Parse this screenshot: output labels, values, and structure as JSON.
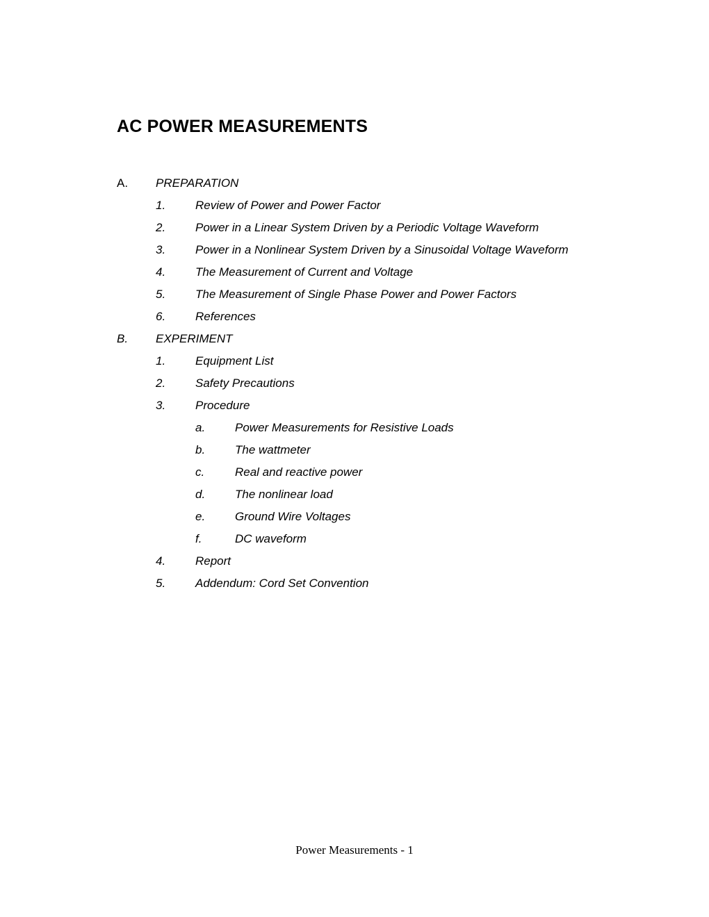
{
  "title": "AC POWER MEASUREMENTS",
  "sections": [
    {
      "marker": "A.",
      "markerItalic": false,
      "label": "PREPARATION",
      "items": [
        {
          "marker": "1.",
          "label": "Review of Power and Power Factor"
        },
        {
          "marker": "2.",
          "label": "Power in a Linear System Driven by a Periodic Voltage Waveform"
        },
        {
          "marker": "3.",
          "label": "Power in a Nonlinear System Driven by a Sinusoidal Voltage Waveform"
        },
        {
          "marker": "4.",
          "label": "The Measurement of Current and Voltage"
        },
        {
          "marker": "5.",
          "label": "The Measurement of Single Phase Power and Power Factors"
        },
        {
          "marker": "6.",
          "label": "References"
        }
      ]
    },
    {
      "marker": "B.",
      "markerItalic": true,
      "label": "EXPERIMENT",
      "items": [
        {
          "marker": "1.",
          "label": "Equipment List"
        },
        {
          "marker": "2.",
          "label": "Safety Precautions"
        },
        {
          "marker": "3.",
          "label": "Procedure",
          "subitems": [
            {
              "marker": "a.",
              "label": "Power Measurements for Resistive Loads"
            },
            {
              "marker": "b.",
              "label": "The wattmeter"
            },
            {
              "marker": "c.",
              "label": "Real and reactive power"
            },
            {
              "marker": "d.",
              "label": "The nonlinear load"
            },
            {
              "marker": "e.",
              "label": "Ground Wire Voltages"
            },
            {
              "marker": "f.",
              "label": "DC waveform"
            }
          ]
        },
        {
          "marker": "4.",
          "label": "Report"
        },
        {
          "marker": "5.",
          "label": "Addendum: Cord Set Convention"
        }
      ]
    }
  ],
  "footer": "Power Measurements - 1"
}
